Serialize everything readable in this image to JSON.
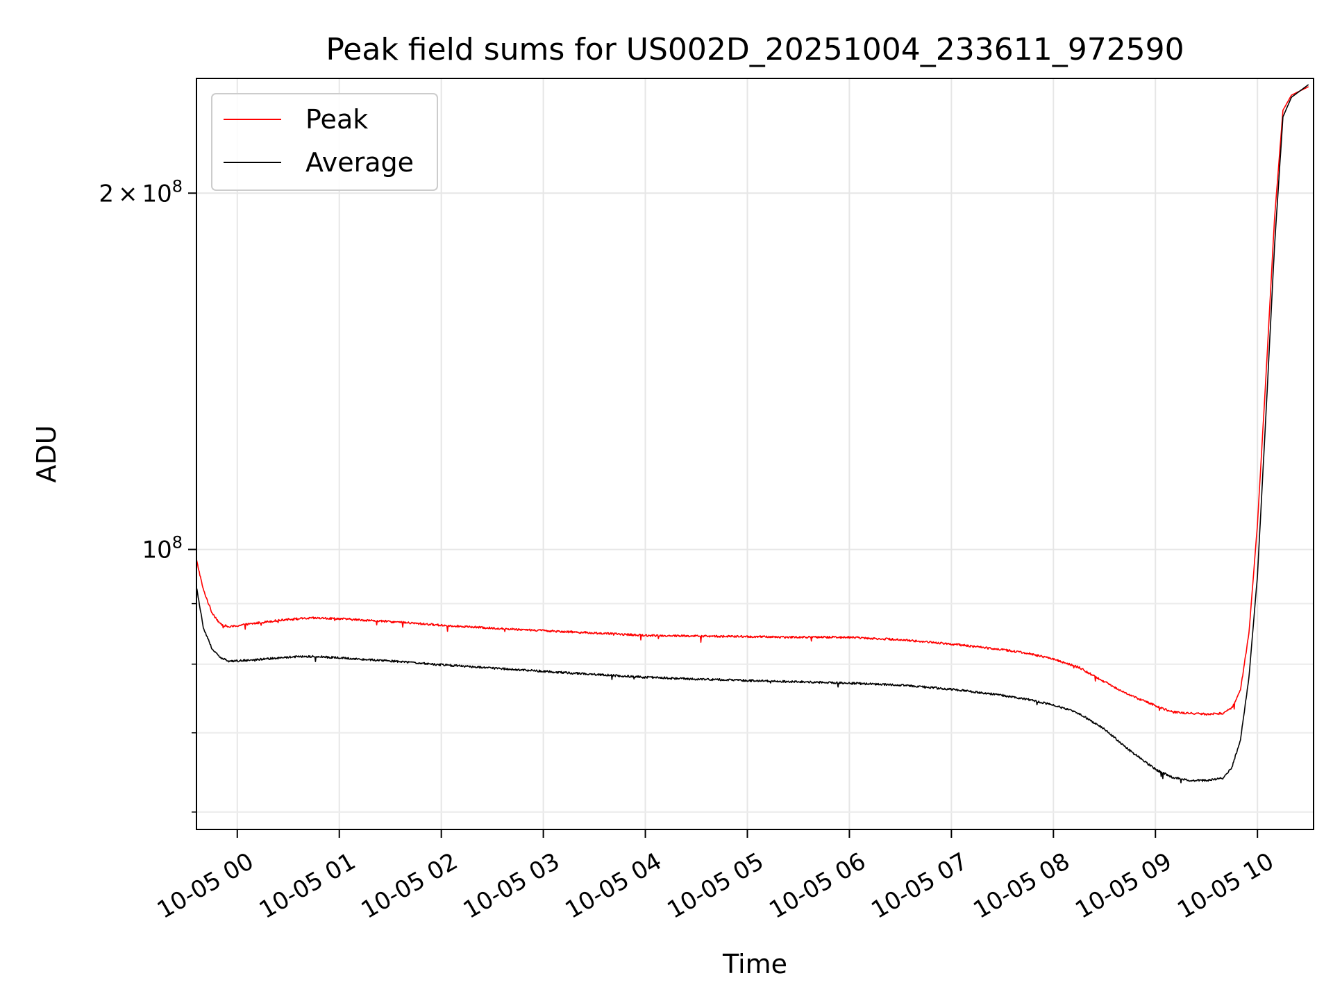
{
  "chart_data": {
    "type": "line",
    "title": "Peak field sums for US002D_20251004_233611_972590",
    "xlabel": "Time",
    "ylabel": "ADU",
    "yscale": "log",
    "grid": true,
    "legend_position": "top-left",
    "xlim": [
      "2025-10-04 23:36",
      "2025-10-05 10:33"
    ],
    "ylim": [
      58000000,
      250000000
    ],
    "x_ticks": [
      "10-05 00",
      "10-05 01",
      "10-05 02",
      "10-05 03",
      "10-05 04",
      "10-05 05",
      "10-05 06",
      "10-05 07",
      "10-05 08",
      "10-05 09",
      "10-05 10"
    ],
    "y_tick_values": [
      100000000,
      200000000
    ],
    "y_tick_labels": [
      {
        "base": "10",
        "exp": "8"
      },
      {
        "mantissa": "2",
        "times": "×",
        "base": "10",
        "exp": "8"
      }
    ],
    "series": [
      {
        "name": "Peak",
        "color": "#ff0000",
        "points": [
          [
            "2025-10-04 23:36",
            98000000
          ],
          [
            "2025-10-04 23:40",
            92500000
          ],
          [
            "2025-10-04 23:45",
            88500000
          ],
          [
            "2025-10-04 23:50",
            86500000
          ],
          [
            "2025-10-04 23:55",
            86000000
          ],
          [
            "2025-10-05 00:00",
            86200000
          ],
          [
            "2025-10-05 00:15",
            86800000
          ],
          [
            "2025-10-05 00:30",
            87300000
          ],
          [
            "2025-10-05 00:45",
            87500000
          ],
          [
            "2025-10-05 01:00",
            87400000
          ],
          [
            "2025-10-05 01:30",
            86900000
          ],
          [
            "2025-10-05 02:00",
            86300000
          ],
          [
            "2025-10-05 02:30",
            85800000
          ],
          [
            "2025-10-05 03:00",
            85400000
          ],
          [
            "2025-10-05 03:30",
            85000000
          ],
          [
            "2025-10-05 04:00",
            84600000
          ],
          [
            "2025-10-05 04:30",
            84500000
          ],
          [
            "2025-10-05 05:00",
            84400000
          ],
          [
            "2025-10-05 05:30",
            84300000
          ],
          [
            "2025-10-05 06:00",
            84300000
          ],
          [
            "2025-10-05 06:30",
            83900000
          ],
          [
            "2025-10-05 07:00",
            83200000
          ],
          [
            "2025-10-05 07:30",
            82300000
          ],
          [
            "2025-10-05 07:45",
            81700000
          ],
          [
            "2025-10-05 08:00",
            80800000
          ],
          [
            "2025-10-05 08:15",
            79500000
          ],
          [
            "2025-10-05 08:30",
            77300000
          ],
          [
            "2025-10-05 08:45",
            75300000
          ],
          [
            "2025-10-05 09:00",
            73800000
          ],
          [
            "2025-10-05 09:10",
            72900000
          ],
          [
            "2025-10-05 09:20",
            72700000
          ],
          [
            "2025-10-05 09:30",
            72600000
          ],
          [
            "2025-10-05 09:40",
            72700000
          ],
          [
            "2025-10-05 09:45",
            73500000
          ],
          [
            "2025-10-05 09:50",
            76000000
          ],
          [
            "2025-10-05 09:55",
            85000000
          ],
          [
            "2025-10-05 10:00",
            105000000
          ],
          [
            "2025-10-05 10:05",
            140000000
          ],
          [
            "2025-10-05 10:10",
            190000000
          ],
          [
            "2025-10-05 10:15",
            235000000
          ],
          [
            "2025-10-05 10:20",
            242000000
          ],
          [
            "2025-10-05 10:25",
            244000000
          ],
          [
            "2025-10-05 10:30",
            246000000
          ]
        ]
      },
      {
        "name": "Average",
        "color": "#000000",
        "points": [
          [
            "2025-10-04 23:36",
            93000000
          ],
          [
            "2025-10-04 23:40",
            86000000
          ],
          [
            "2025-10-04 23:45",
            82500000
          ],
          [
            "2025-10-04 23:50",
            81000000
          ],
          [
            "2025-10-04 23:55",
            80500000
          ],
          [
            "2025-10-05 00:00",
            80500000
          ],
          [
            "2025-10-05 00:15",
            80800000
          ],
          [
            "2025-10-05 00:30",
            81100000
          ],
          [
            "2025-10-05 00:45",
            81200000
          ],
          [
            "2025-10-05 01:00",
            81000000
          ],
          [
            "2025-10-05 01:30",
            80500000
          ],
          [
            "2025-10-05 02:00",
            79900000
          ],
          [
            "2025-10-05 02:30",
            79400000
          ],
          [
            "2025-10-05 03:00",
            78900000
          ],
          [
            "2025-10-05 03:30",
            78400000
          ],
          [
            "2025-10-05 04:00",
            78000000
          ],
          [
            "2025-10-05 04:30",
            77700000
          ],
          [
            "2025-10-05 05:00",
            77500000
          ],
          [
            "2025-10-05 05:30",
            77300000
          ],
          [
            "2025-10-05 06:00",
            77100000
          ],
          [
            "2025-10-05 06:30",
            76800000
          ],
          [
            "2025-10-05 07:00",
            76200000
          ],
          [
            "2025-10-05 07:30",
            75300000
          ],
          [
            "2025-10-05 07:45",
            74700000
          ],
          [
            "2025-10-05 08:00",
            73900000
          ],
          [
            "2025-10-05 08:15",
            72700000
          ],
          [
            "2025-10-05 08:30",
            70500000
          ],
          [
            "2025-10-05 08:45",
            67600000
          ],
          [
            "2025-10-05 09:00",
            65200000
          ],
          [
            "2025-10-05 09:10",
            64200000
          ],
          [
            "2025-10-05 09:20",
            63800000
          ],
          [
            "2025-10-05 09:30",
            63800000
          ],
          [
            "2025-10-05 09:40",
            64100000
          ],
          [
            "2025-10-05 09:45",
            65500000
          ],
          [
            "2025-10-05 09:50",
            69000000
          ],
          [
            "2025-10-05 09:55",
            78000000
          ],
          [
            "2025-10-05 10:00",
            95000000
          ],
          [
            "2025-10-05 10:05",
            130000000
          ],
          [
            "2025-10-05 10:10",
            180000000
          ],
          [
            "2025-10-05 10:15",
            232000000
          ],
          [
            "2025-10-05 10:20",
            241000000
          ],
          [
            "2025-10-05 10:25",
            244000000
          ],
          [
            "2025-10-05 10:30",
            247000000
          ]
        ]
      }
    ]
  }
}
